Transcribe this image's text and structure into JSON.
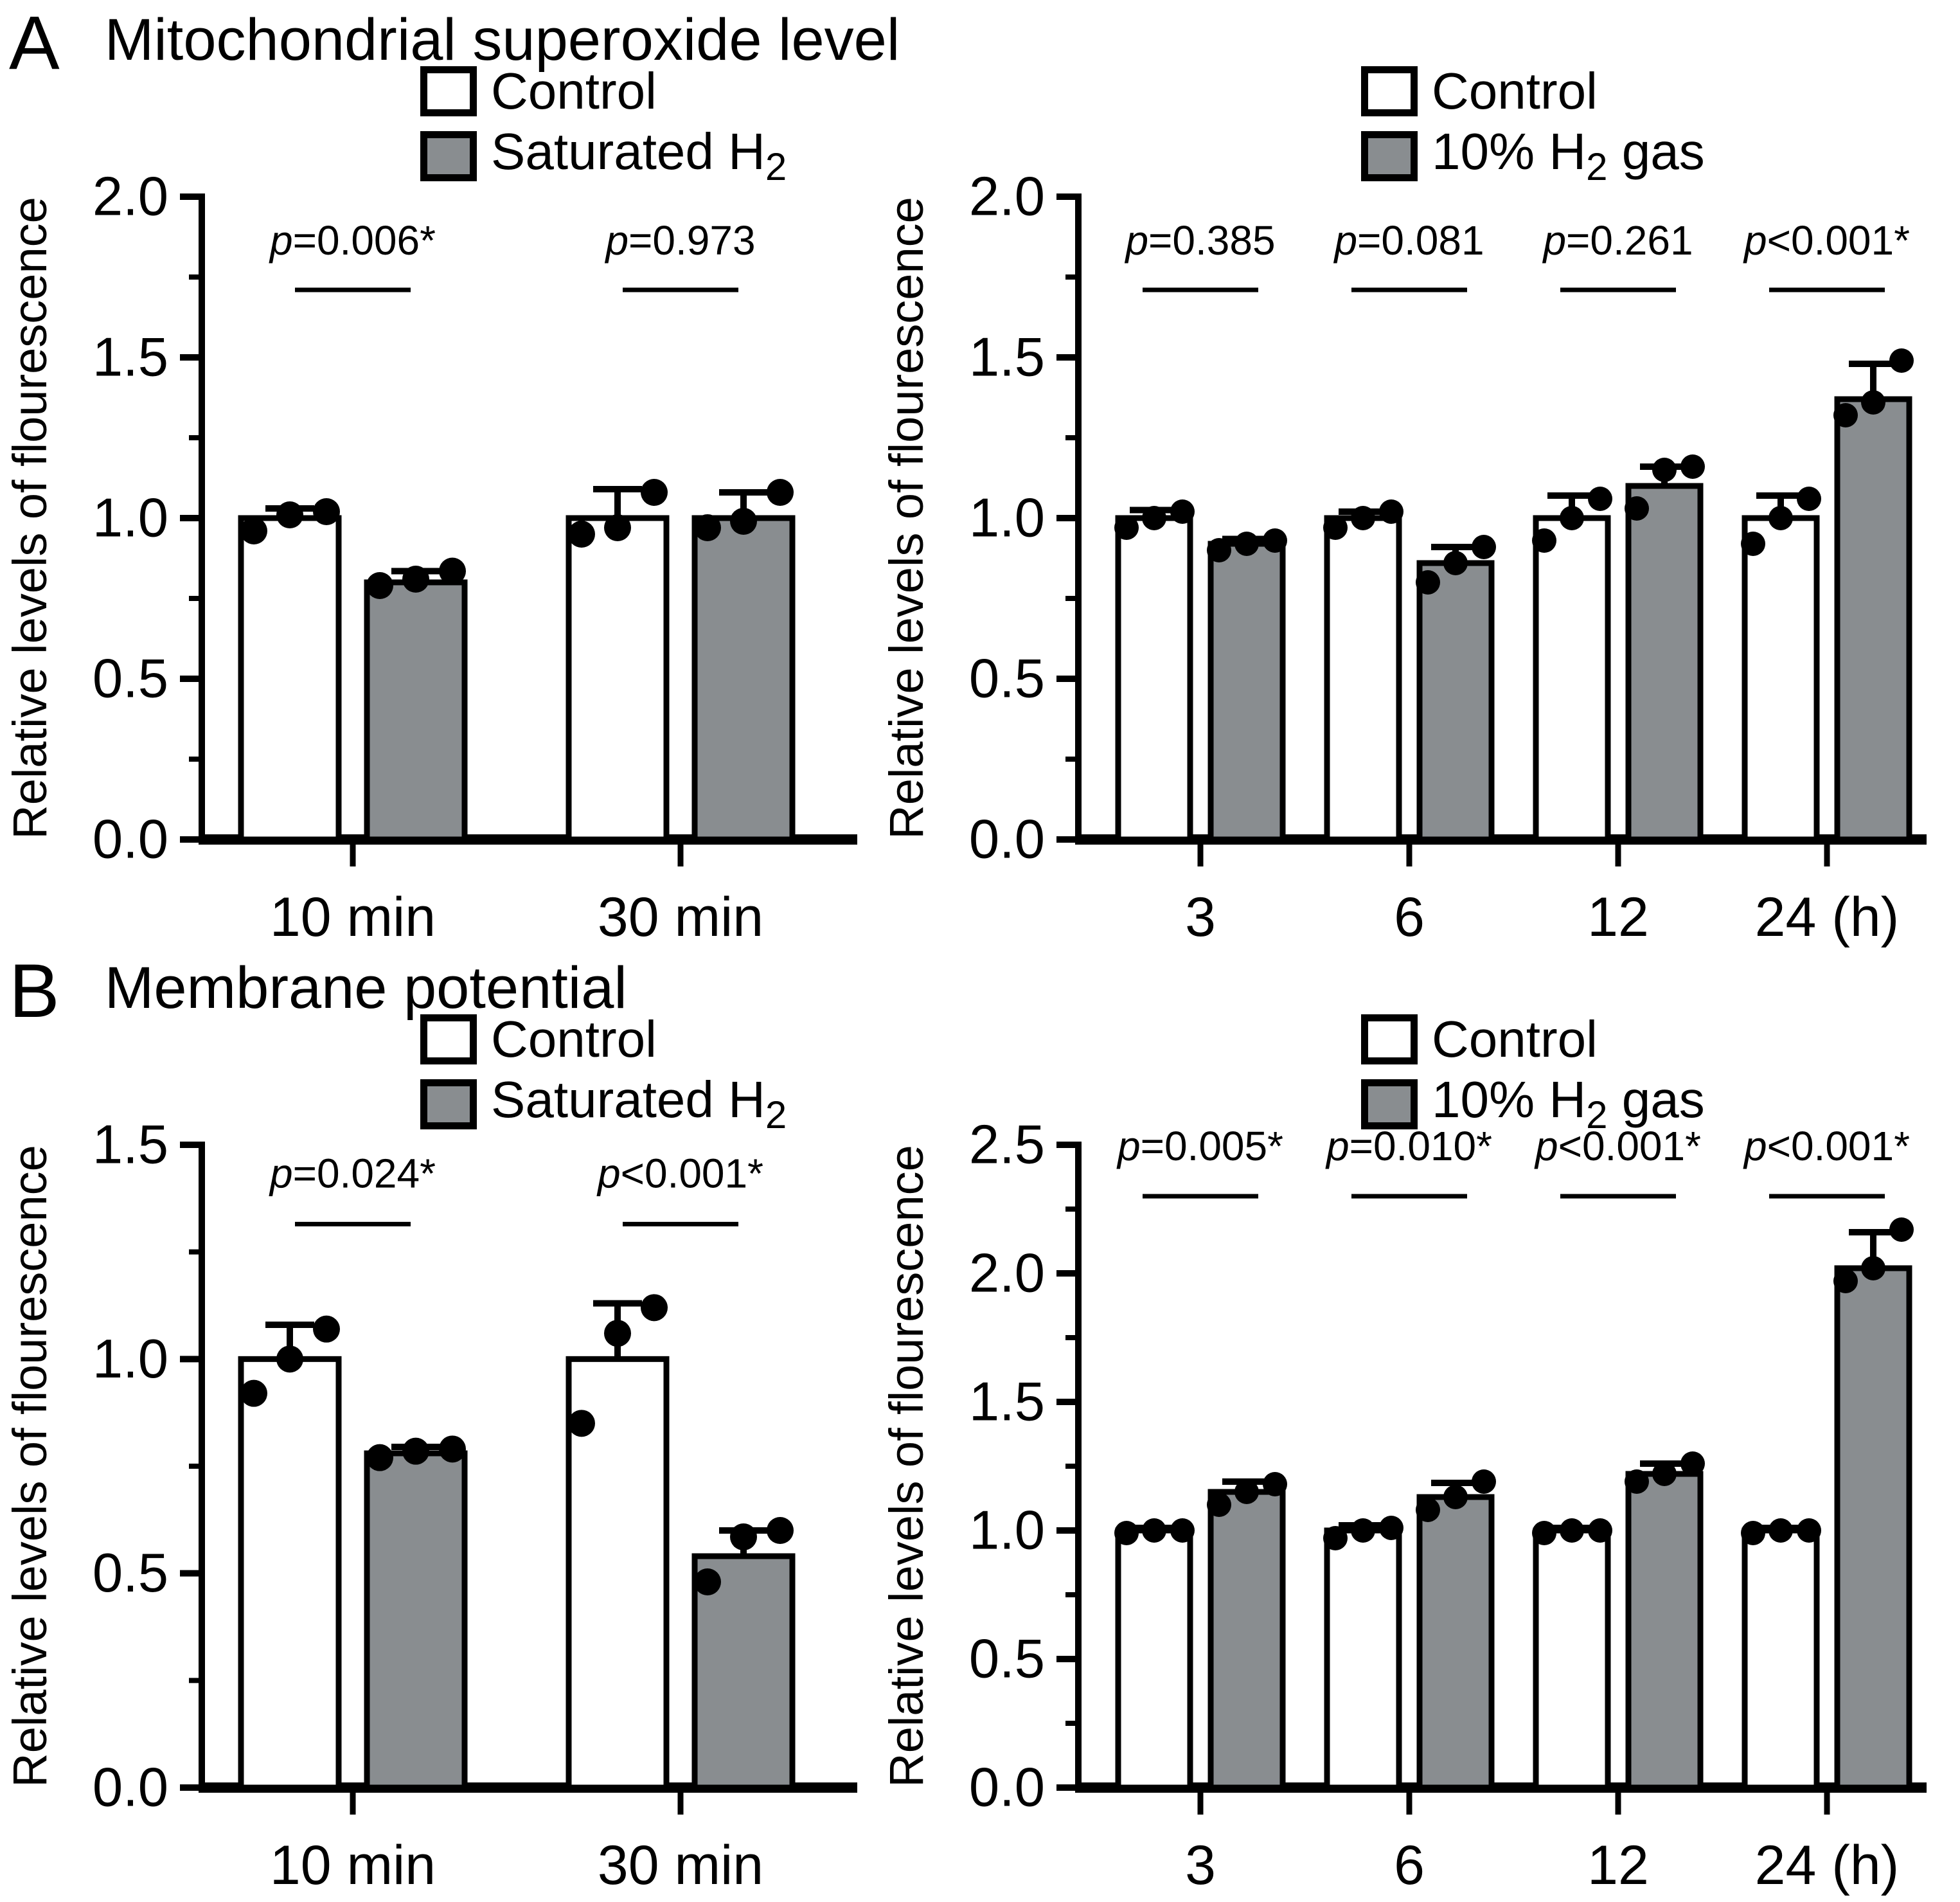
{
  "figure": {
    "panels": [
      {
        "letter": "A",
        "title": "Mitochondrial superoxide level"
      },
      {
        "letter": "B",
        "title": "Membrane potential"
      }
    ],
    "colors": {
      "control_fill": "#ffffff",
      "h2_fill": "#898d90",
      "ink": "#000000"
    }
  },
  "chart_data": [
    {
      "type": "bar",
      "panel": "A",
      "side": "left",
      "ylabel": "Relative levels of flourescence",
      "ylim": [
        0,
        2.0
      ],
      "yticks": [
        0,
        0.5,
        1.0,
        1.5,
        2.0
      ],
      "ytick_labels": [
        "0.0",
        "0.5",
        "1.0",
        "1.5",
        "2.0"
      ],
      "minor_tick_step": 0.25,
      "grid": false,
      "legend_position": "above-right",
      "categories": [
        "10 min",
        "30 min"
      ],
      "x_unit": "",
      "legend": [
        {
          "label_pre": "Control",
          "label_sub": "",
          "label_post": "",
          "fill": "#ffffff"
        },
        {
          "label_pre": "Saturated H",
          "label_sub": "2",
          "label_post": "",
          "fill": "#898d90"
        }
      ],
      "series": [
        {
          "name": "Control",
          "values": [
            1.0,
            1.0
          ],
          "sd_up": [
            0.03,
            0.09
          ],
          "points": [
            [
              0.96,
              1.01,
              1.02
            ],
            [
              0.95,
              0.97,
              1.08
            ]
          ]
        },
        {
          "name": "Saturated H2",
          "values": [
            0.8,
            1.0
          ],
          "sd_up": [
            0.035,
            0.08
          ],
          "points": [
            [
              0.79,
              0.81,
              0.835
            ],
            [
              0.97,
              0.99,
              1.08
            ]
          ]
        }
      ],
      "p_values": [
        "p=0.006*",
        "p=0.973"
      ],
      "p_text_y": 1.82,
      "p_line_y": 1.71
    },
    {
      "type": "bar",
      "panel": "A",
      "side": "right",
      "ylabel": "Relative levels of flourescence",
      "ylim": [
        0,
        2.0
      ],
      "yticks": [
        0,
        0.5,
        1.0,
        1.5,
        2.0
      ],
      "ytick_labels": [
        "0.0",
        "0.5",
        "1.0",
        "1.5",
        "2.0"
      ],
      "minor_tick_step": 0.25,
      "grid": false,
      "legend_position": "above-right",
      "categories": [
        "3",
        "6",
        "12",
        "24"
      ],
      "x_unit": "(h)",
      "legend": [
        {
          "label_pre": "Control",
          "label_sub": "",
          "label_post": "",
          "fill": "#ffffff"
        },
        {
          "label_pre": "10% H",
          "label_sub": "2",
          "label_post": " gas",
          "fill": "#898d90"
        }
      ],
      "series": [
        {
          "name": "Control",
          "values": [
            1.0,
            1.0,
            1.0,
            1.0
          ],
          "sd_up": [
            0.025,
            0.02,
            0.07,
            0.07
          ],
          "points": [
            [
              0.97,
              1.0,
              1.02
            ],
            [
              0.97,
              1.0,
              1.02
            ],
            [
              0.93,
              1.0,
              1.06
            ],
            [
              0.92,
              1.0,
              1.06
            ]
          ]
        },
        {
          "name": "10% H2 gas",
          "values": [
            0.92,
            0.86,
            1.1,
            1.37
          ],
          "sd_up": [
            0.015,
            0.05,
            0.06,
            0.11
          ],
          "points": [
            [
              0.9,
              0.92,
              0.93
            ],
            [
              0.8,
              0.86,
              0.91
            ],
            [
              1.03,
              1.15,
              1.16
            ],
            [
              1.32,
              1.36,
              1.49
            ]
          ]
        }
      ],
      "p_values": [
        "p=0.385",
        "p=0.081",
        "p=0.261",
        "p<0.001*"
      ],
      "p_text_y": 1.82,
      "p_line_y": 1.71
    },
    {
      "type": "bar",
      "panel": "B",
      "side": "left",
      "ylabel": "Relative levels of flourescence",
      "ylim": [
        0,
        1.5
      ],
      "yticks": [
        0,
        0.5,
        1.0,
        1.5
      ],
      "ytick_labels": [
        "0.0",
        "0.5",
        "1.0",
        "1.5"
      ],
      "minor_tick_step": 0.25,
      "grid": false,
      "legend_position": "above-right",
      "categories": [
        "10 min",
        "30 min"
      ],
      "x_unit": "",
      "legend": [
        {
          "label_pre": "Control",
          "label_sub": "",
          "label_post": "",
          "fill": "#ffffff"
        },
        {
          "label_pre": "Saturated H",
          "label_sub": "2",
          "label_post": "",
          "fill": "#898d90"
        }
      ],
      "series": [
        {
          "name": "Control",
          "values": [
            1.0,
            1.0
          ],
          "sd_up": [
            0.08,
            0.13
          ],
          "points": [
            [
              0.92,
              1.0,
              1.07
            ],
            [
              0.85,
              1.06,
              1.12
            ]
          ]
        },
        {
          "name": "Saturated H2",
          "values": [
            0.78,
            0.54
          ],
          "sd_up": [
            0.015,
            0.06
          ],
          "points": [
            [
              0.77,
              0.785,
              0.79
            ],
            [
              0.48,
              0.585,
              0.6
            ]
          ]
        }
      ],
      "p_values": [
        "p=0.024*",
        "p<0.001*"
      ],
      "p_text_y": 1.4,
      "p_line_y": 1.315
    },
    {
      "type": "bar",
      "panel": "B",
      "side": "right",
      "ylabel": "Relative levels of flourescence",
      "ylim": [
        0,
        2.5
      ],
      "yticks": [
        0,
        0.5,
        1.0,
        1.5,
        2.0,
        2.5
      ],
      "ytick_labels": [
        "0.0",
        "0.5",
        "1.0",
        "1.5",
        "2.0",
        "2.5"
      ],
      "minor_tick_step": 0.25,
      "grid": false,
      "legend_position": "above-right",
      "categories": [
        "3",
        "6",
        "12",
        "24"
      ],
      "x_unit": "(h)",
      "legend": [
        {
          "label_pre": "Control",
          "label_sub": "",
          "label_post": "",
          "fill": "#ffffff"
        },
        {
          "label_pre": "10% H",
          "label_sub": "2",
          "label_post": " gas",
          "fill": "#898d90"
        }
      ],
      "series": [
        {
          "name": "Control",
          "values": [
            1.0,
            1.0,
            1.0,
            1.0
          ],
          "sd_up": [
            0.01,
            0.02,
            0.01,
            0.01
          ],
          "points": [
            [
              0.99,
              1.0,
              1.0
            ],
            [
              0.97,
              1.0,
              1.01
            ],
            [
              0.99,
              1.0,
              1.0
            ],
            [
              0.99,
              1.0,
              1.0
            ]
          ]
        },
        {
          "name": "10% H2 gas",
          "values": [
            1.15,
            1.13,
            1.22,
            2.02
          ],
          "sd_up": [
            0.04,
            0.055,
            0.04,
            0.14
          ],
          "points": [
            [
              1.1,
              1.15,
              1.18
            ],
            [
              1.08,
              1.13,
              1.19
            ],
            [
              1.19,
              1.22,
              1.26
            ],
            [
              1.97,
              2.02,
              2.17
            ]
          ]
        }
      ],
      "p_values": [
        "p=0.005*",
        "p=0.010*",
        "p<0.001*",
        "p<0.001*"
      ],
      "p_text_y": 2.44,
      "p_line_y": 2.3
    }
  ]
}
